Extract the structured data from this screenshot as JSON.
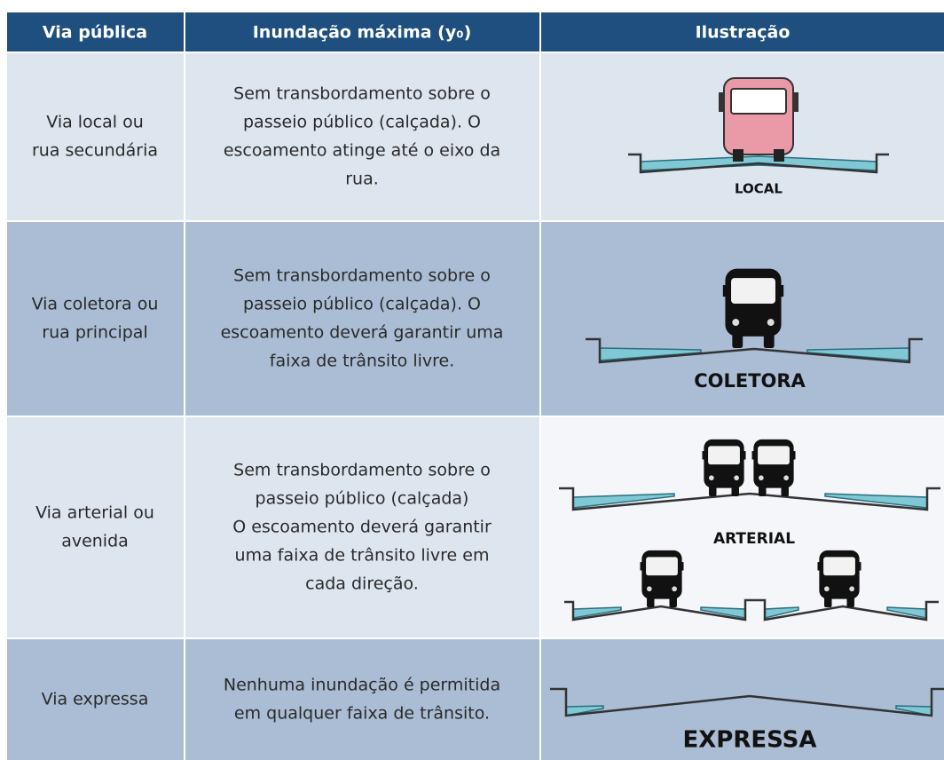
{
  "header": [
    "Via pública",
    "Inundação máxima (y₀)",
    "Ilustração"
  ],
  "rows": [
    {
      "via": [
        "Via local ou",
        "rua secundária"
      ],
      "inundacao": [
        "Sem transbordamento sobre o",
        "passeio público (calçada). O",
        "escoamento atinge até o eixo da",
        "rua."
      ],
      "ilustracao": "LOCAL"
    },
    {
      "via": [
        "Via coletora ou",
        "rua principal"
      ],
      "inundacao": [
        "Sem transbordamento sobre o",
        "passeio público (calçada). O",
        "escoamento deverá garantir uma",
        "faixa de trânsito livre."
      ],
      "ilustracao": "COLETORA"
    },
    {
      "via": [
        "Via arterial ou",
        "avenida"
      ],
      "inundacao": [
        "Sem transbordamento sobre o",
        "passeio público (calçada)",
        "O escoamento deverá garantir",
        "uma faixa de trânsito livre em",
        "cada direção."
      ],
      "ilustracao": "ARTERIAL"
    },
    {
      "via": [
        "Via expressa"
      ],
      "inundacao": [
        "Nenhuma inundação é permitida",
        "em qualquer faixa de trânsito."
      ],
      "ilustracao": "EXPRESSA"
    }
  ]
}
